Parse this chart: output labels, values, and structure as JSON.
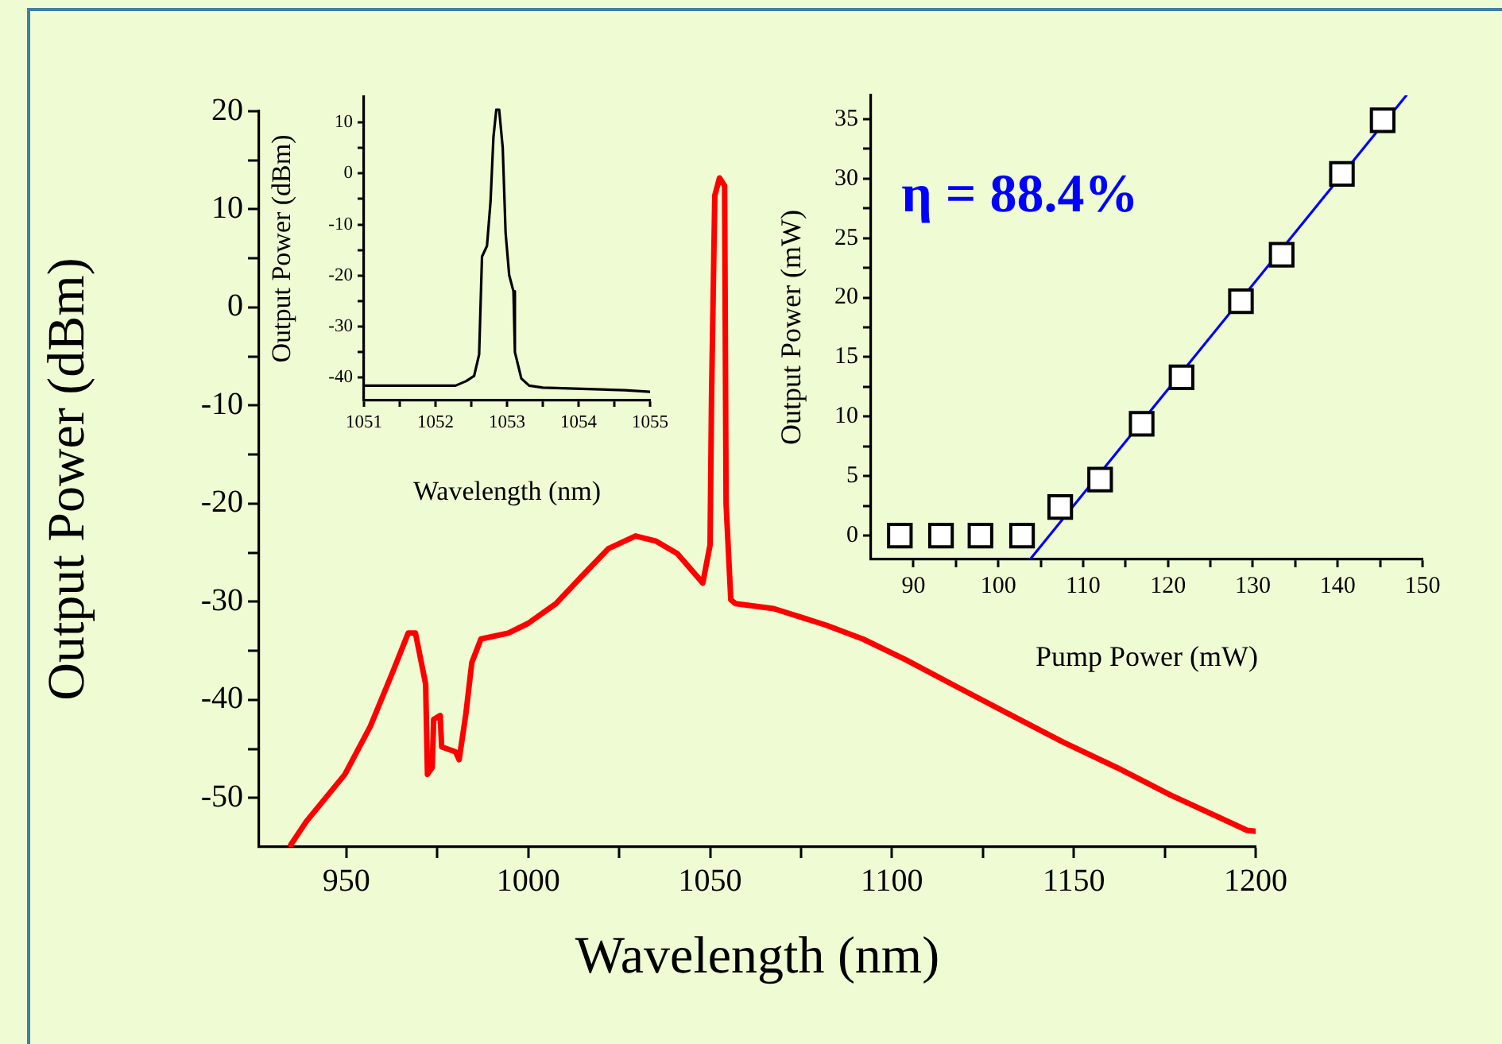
{
  "chart_data": [
    {
      "type": "line",
      "xlabel": "Wavelength (nm)",
      "ylabel": "Output Power (dBm)",
      "xlim": [
        926,
        1200
      ],
      "ylim": [
        -55,
        20
      ],
      "xticks": [
        950,
        {
          "value": 975,
          "label": null
        },
        1000,
        {
          "value": 1025,
          "label": null
        },
        1050,
        {
          "value": 1075,
          "label": null
        },
        1100,
        {
          "value": 1125,
          "label": null
        },
        1150,
        {
          "value": 1175,
          "label": null
        },
        1200
      ],
      "yticks": [
        -50,
        {
          "value": -45,
          "label": null
        },
        -40,
        {
          "value": -35,
          "label": null
        },
        -30,
        {
          "value": -25,
          "label": null
        },
        -20,
        {
          "value": -15,
          "label": null
        },
        -10,
        {
          "value": -5,
          "label": null
        },
        0,
        {
          "value": 5,
          "label": null
        },
        10,
        {
          "value": 15,
          "label": null
        },
        20
      ],
      "series": [
        {
          "color": "#ff0000",
          "x": [
            934.7,
            939,
            949.6,
            956.6,
            962.7,
            967,
            969,
            971.8,
            972.3,
            973.6,
            974,
            975.8,
            976.2,
            980,
            981,
            982.8,
            984.5,
            987,
            994.5,
            1000,
            1007.6,
            1015,
            1022,
            1029.5,
            1035,
            1041,
            1048,
            1050,
            1050.4,
            1051.3,
            1052.6,
            1054,
            1054.4,
            1055.7,
            1057,
            1067.5,
            1082,
            1092,
            1103.7,
            1118,
            1133,
            1147,
            1161.8,
            1176.6,
            1197.6,
            1200
          ],
          "values": [
            -54.8,
            -52.4,
            -47.6,
            -42.7,
            -37.2,
            -33.2,
            -33.2,
            -38.4,
            -47.6,
            -46.9,
            -42,
            -41.6,
            -44.8,
            -45.3,
            -46.1,
            -41.6,
            -36.2,
            -33.8,
            -33.2,
            -32.2,
            -30.2,
            -27.3,
            -24.6,
            -23.3,
            -23.8,
            -25.1,
            -28.1,
            -24.2,
            -9.2,
            11.4,
            13.2,
            12.4,
            -20,
            -29.8,
            -30.2,
            -30.7,
            -32.4,
            -33.8,
            -35.9,
            -38.7,
            -41.6,
            -44.3,
            -46.9,
            -49.7,
            -53.3,
            -53.4
          ]
        }
      ]
    },
    {
      "type": "line",
      "xlabel": "Wavelength (nm)",
      "ylabel": "Output Power (dBm)",
      "xlim": [
        1051,
        1055
      ],
      "ylim": [
        -44.5,
        15
      ],
      "xticks": [
        1051,
        {
          "value": 1051.5,
          "label": null
        },
        1052,
        {
          "value": 1052.5,
          "label": null
        },
        1053,
        {
          "value": 1053.5,
          "label": null
        },
        1054,
        {
          "value": 1054.5,
          "label": null
        },
        1055
      ],
      "yticks": [
        -40,
        {
          "value": -35,
          "label": null
        },
        -30,
        {
          "value": -25,
          "label": null
        },
        -20,
        {
          "value": -15,
          "label": null
        },
        -10,
        {
          "value": -5,
          "label": null
        },
        0,
        {
          "value": 5,
          "label": null
        },
        10
      ],
      "series": [
        {
          "color": "#000000",
          "x": [
            1051,
            1052.28,
            1052.43,
            1052.54,
            1052.61,
            1052.65,
            1052.72,
            1052.77,
            1052.81,
            1052.85,
            1052.89,
            1052.94,
            1052.98,
            1053.03,
            1053.09,
            1053.11,
            1053.2,
            1053.31,
            1053.5,
            1054.65,
            1055
          ],
          "values": [
            -41.6,
            -41.6,
            -40.7,
            -39.7,
            -35.5,
            -16.3,
            -14.2,
            -5.4,
            7.1,
            12.5,
            12.5,
            5,
            -11.6,
            -19.9,
            -23.1,
            -35,
            -40.2,
            -41.6,
            -42,
            -42.5,
            -42.8
          ]
        }
      ]
    },
    {
      "type": "scatter",
      "xlabel": "Pump Power (mW)",
      "ylabel": "Output Power (mW)",
      "xlim": [
        85,
        150
      ],
      "ylim": [
        -2,
        37
      ],
      "xticks": [
        90,
        {
          "value": 95,
          "label": null
        },
        100,
        {
          "value": 105,
          "label": null
        },
        110,
        {
          "value": 115,
          "label": null
        },
        120,
        {
          "value": 125,
          "label": null
        },
        130,
        {
          "value": 135,
          "label": null
        },
        140,
        {
          "value": 145,
          "label": null
        },
        150
      ],
      "yticks": [
        0,
        {
          "value": 2.5,
          "label": null
        },
        5,
        {
          "value": 7.5,
          "label": null
        },
        10,
        {
          "value": 12.5,
          "label": null
        },
        15,
        {
          "value": 17.5,
          "label": null
        },
        20,
        {
          "value": 22.5,
          "label": null
        },
        25,
        {
          "value": 27.5,
          "label": null
        },
        30,
        {
          "value": 32.5,
          "label": null
        },
        35
      ],
      "annotations": [
        "η = 88.4%"
      ],
      "series": [
        {
          "type": "line",
          "color": "#0000ff",
          "x": [
            103.75,
            148.1
          ],
          "values": [
            -2,
            37
          ]
        },
        {
          "marker": "square",
          "color": "#000000",
          "x": [
            88.4,
            93.25,
            97.9,
            102.8,
            107.3,
            112,
            116.9,
            121.6,
            128.6,
            133.4,
            140.5,
            145.3
          ],
          "values": [
            0,
            0,
            0,
            0,
            2.4,
            4.7,
            9.4,
            13.3,
            19.7,
            23.6,
            30.4,
            34.9
          ]
        }
      ]
    }
  ]
}
